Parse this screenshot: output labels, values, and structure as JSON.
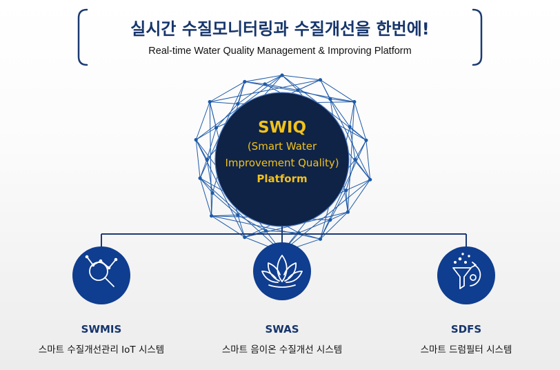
{
  "header": {
    "title_ko": "실시간 수질모니터링과 수질개선을 한번에!",
    "title_en": "Real-time Water Quality Management & Improving Platform"
  },
  "core": {
    "name": "SWIQ",
    "line1": "(Smart Water",
    "line2": "Improvement Quality)",
    "line3": "Platform"
  },
  "modules": [
    {
      "icon": "magnifier-network-icon",
      "name": "SWMIS",
      "desc": "스마트 수질개선관리 IoT 시스템"
    },
    {
      "icon": "lotus-icon",
      "name": "SWAS",
      "desc": "스마트 음이온 수질개선 시스템"
    },
    {
      "icon": "funnel-filter-icon",
      "name": "SDFS",
      "desc": "스마트 드럼필터 시스템"
    }
  ],
  "colors": {
    "navy": "#16356b",
    "core_fill": "#0f2347",
    "accent_yellow": "#f2c21a",
    "module_blue": "#0f3d8f",
    "mesh_blue": "#1e5aa8"
  }
}
